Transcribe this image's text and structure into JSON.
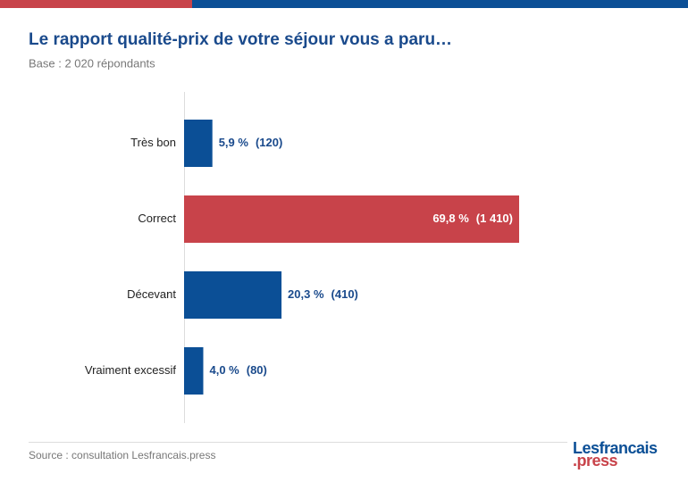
{
  "chart_data": {
    "type": "hbar",
    "title": "Le rapport qualité-prix de votre séjour vous a paru…",
    "subtitle": "Base : 2 020 répondants",
    "categories": [
      "Très bon",
      "Correct",
      "Décevant",
      "Vraiment excessif"
    ],
    "values": [
      5.9,
      69.8,
      20.3,
      4.0
    ],
    "value_labels": [
      "5,9 %",
      "69,8 %",
      "20,3 %",
      "4,0 %"
    ],
    "counts": [
      120,
      1410,
      410,
      80
    ],
    "count_labels": [
      "(120)",
      "(1 410)",
      "(410)",
      "(80)"
    ],
    "colors": [
      "#0b4f96",
      "#c8434a",
      "#0b4f96",
      "#0b4f96"
    ],
    "source": "Source : consultation Lesfrancais.press",
    "logo": {
      "line1": "Lesfrancais",
      "line2": ".press"
    }
  }
}
